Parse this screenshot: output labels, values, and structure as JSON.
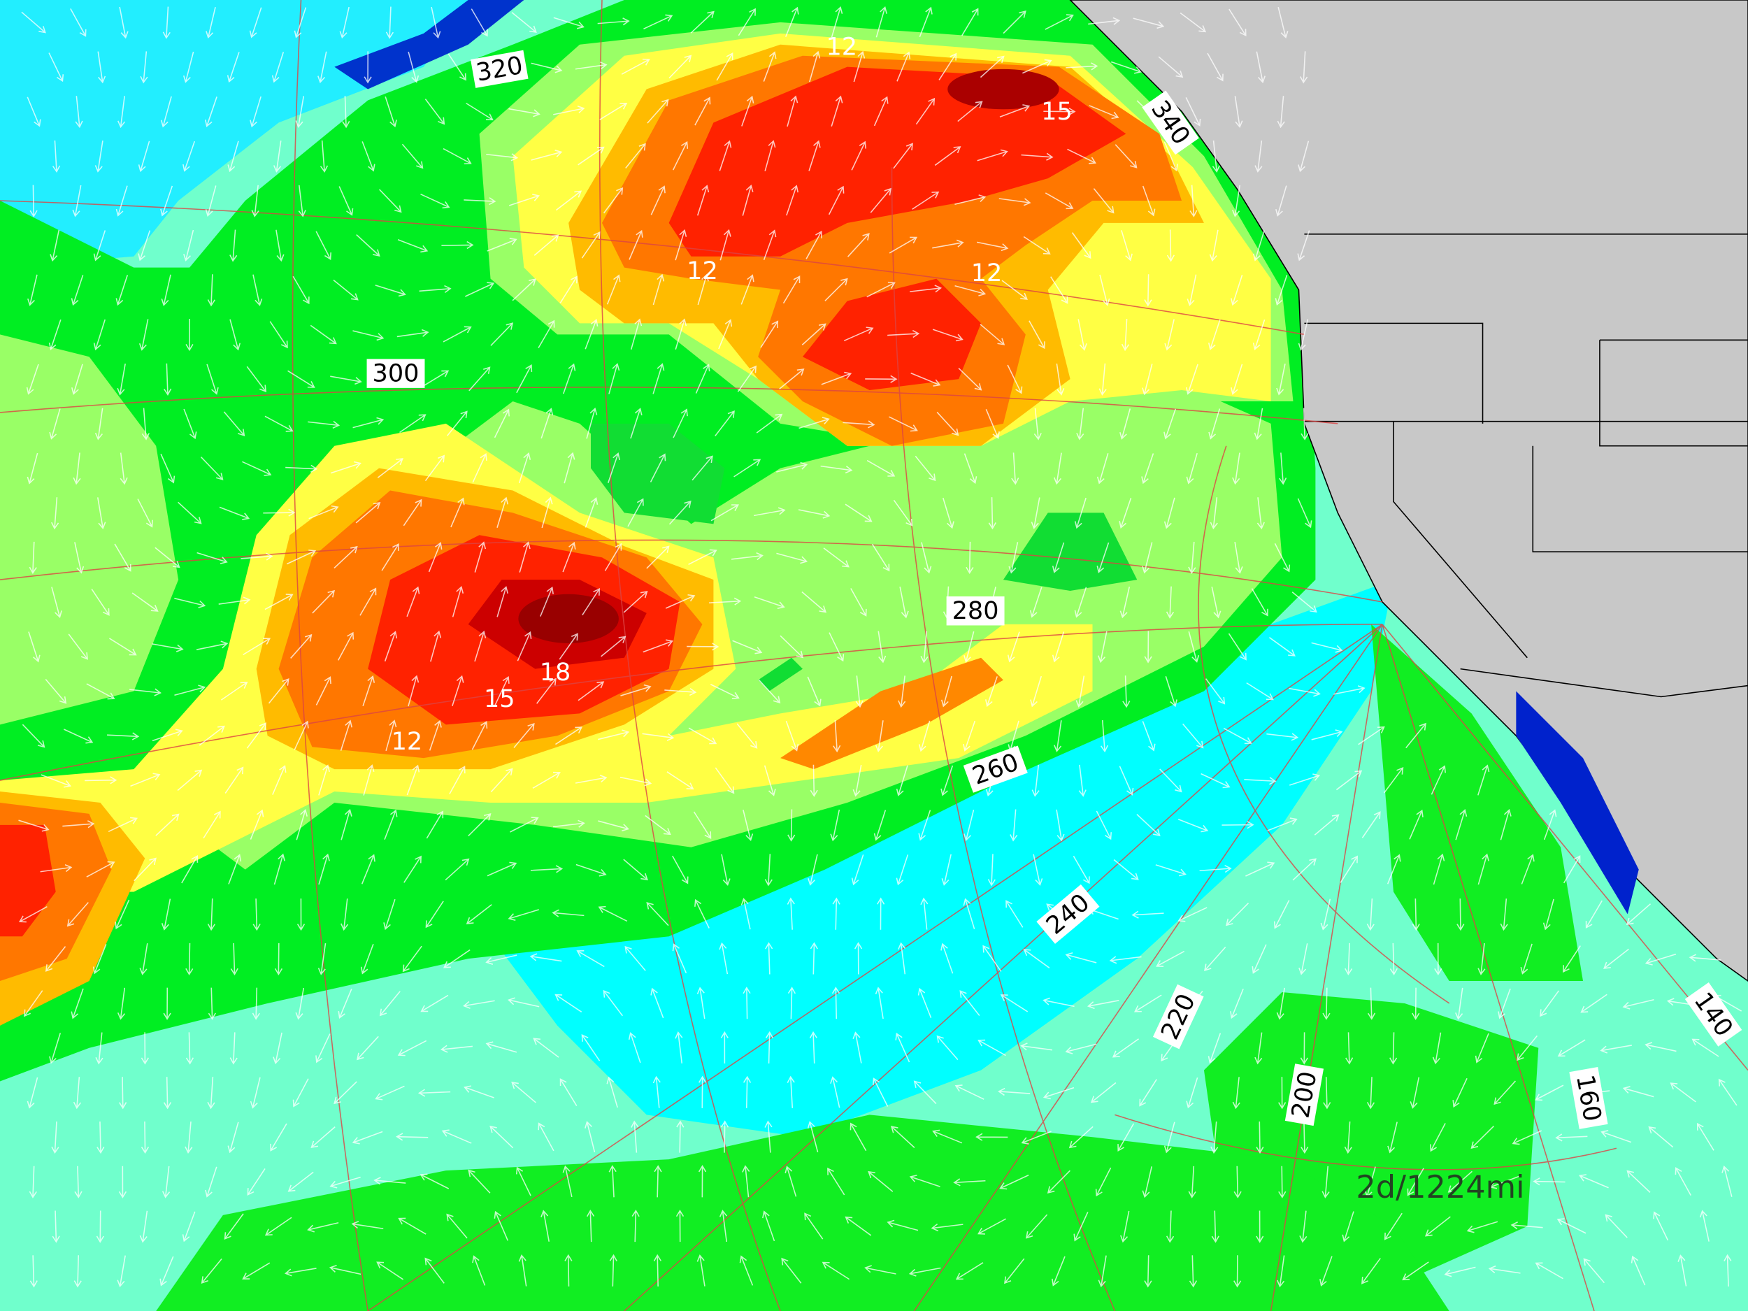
{
  "bearing_labels": [
    "320",
    "300",
    "280",
    "260",
    "240",
    "220",
    "200",
    "160",
    "140",
    "340"
  ],
  "contour_labels": [
    "12",
    "15",
    "12",
    "12",
    "18",
    "15",
    "12"
  ],
  "distance_label": "2d/1224mi"
}
